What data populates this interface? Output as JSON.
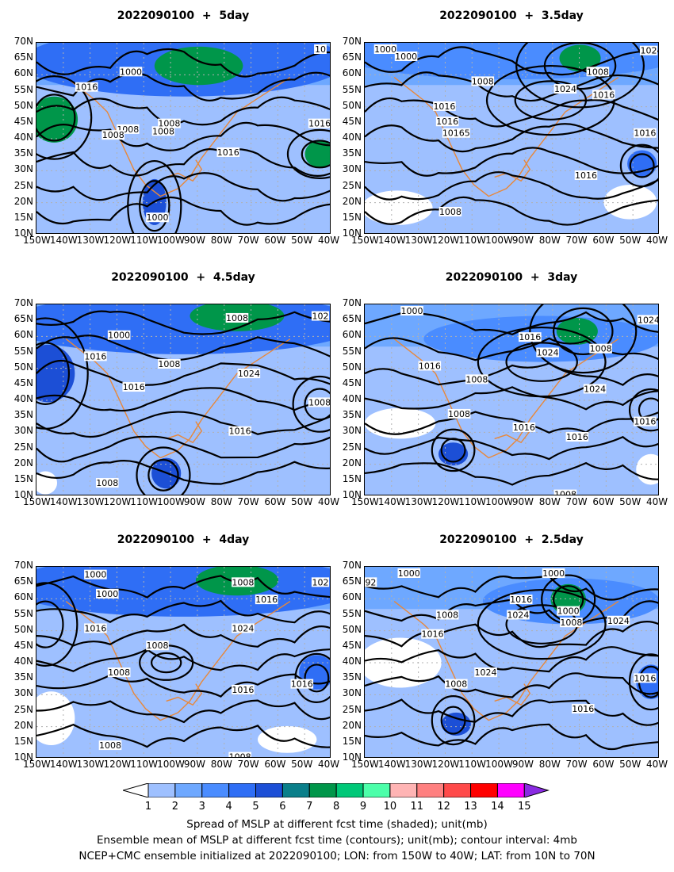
{
  "panels": [
    {
      "title": "2022090100  +  5day",
      "labels": [
        "1000",
        "1016",
        "1008",
        "1008",
        "1008",
        "1008",
        "1016",
        "1016",
        "1000",
        "10"
      ]
    },
    {
      "title": "2022090100  +  3.5day",
      "labels": [
        "1000",
        "1000",
        "1008",
        "1024",
        "1008",
        "1016",
        "1016",
        "1016",
        "10165",
        "1016",
        "1016",
        "1008",
        "102"
      ]
    },
    {
      "title": "2022090100  +  4.5day",
      "labels": [
        "1000",
        "1016",
        "1008",
        "1016",
        "1024",
        "1008",
        "1016",
        "1008",
        "1008",
        "102"
      ]
    },
    {
      "title": "2022090100  +  3day",
      "labels": [
        "1000",
        "1016",
        "1016",
        "1024",
        "1008",
        "1024",
        "1008",
        "1008",
        "1016",
        "1016",
        "1016",
        "1008",
        "1024"
      ]
    },
    {
      "title": "2022090100  +  4day",
      "labels": [
        "1000",
        "1000",
        "1016",
        "1008",
        "1008",
        "1016",
        "1024",
        "1008",
        "1016",
        "1016",
        "1008",
        "1008",
        "102"
      ]
    },
    {
      "title": "2022090100  +  2.5day",
      "labels": [
        "1000",
        "1000",
        "92",
        "1008",
        "1016",
        "1024",
        "1016",
        "1000",
        "1008",
        "1024",
        "1024",
        "1008",
        "1016",
        "1016"
      ]
    }
  ],
  "axes": {
    "y_ticks": [
      "70N",
      "65N",
      "60N",
      "55N",
      "50N",
      "45N",
      "40N",
      "35N",
      "30N",
      "25N",
      "20N",
      "15N",
      "10N"
    ],
    "x_ticks": [
      "150W",
      "140W",
      "130W",
      "120W",
      "110W",
      "100W",
      "90W",
      "80W",
      "70W",
      "60W",
      "50W",
      "40W"
    ]
  },
  "colorbar": {
    "labels": [
      "1",
      "2",
      "3",
      "4",
      "5",
      "6",
      "7",
      "8",
      "9",
      "10",
      "11",
      "12",
      "13",
      "14",
      "15"
    ],
    "colors": [
      "#ffffff",
      "#9ec0ff",
      "#6ea8ff",
      "#4a8cff",
      "#2f6ef5",
      "#1c4fd6",
      "#0a7f8a",
      "#00964a",
      "#00c878",
      "#4cffaa",
      "#ffb4b4",
      "#ff8080",
      "#ff4a4a",
      "#ff0000",
      "#ff00ff",
      "#8a2be2"
    ]
  },
  "captions": [
    "Spread of MSLP at different fcst time (shaded); unit(mb)",
    "Ensemble mean of MSLP at different fcst time (contours); unit(mb); contour interval: 4mb",
    "NCEP+CMC ensemble initialized at 2022090100; LON: from 150W to 40W; LAT: from 10N to 70N"
  ]
}
